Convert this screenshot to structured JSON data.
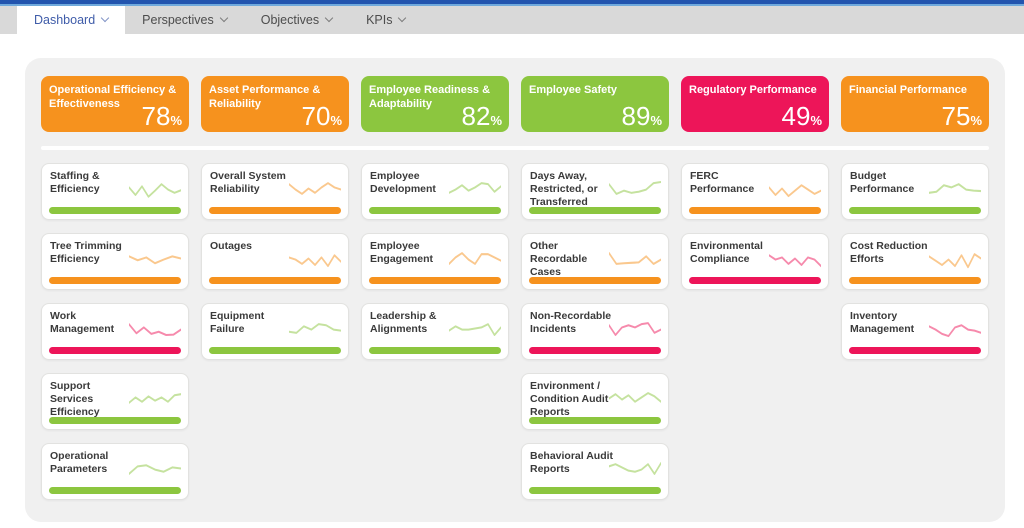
{
  "nav": {
    "tabs": [
      {
        "label": "Dashboard",
        "active": true
      },
      {
        "label": "Perspectives",
        "active": false
      },
      {
        "label": "Objectives",
        "active": false
      },
      {
        "label": "KPIs",
        "active": false
      }
    ]
  },
  "colors": {
    "green": "#8CC63F",
    "orange": "#F6921E",
    "crimson": "#ED1559",
    "accent_dark_blue": "#2254AE",
    "accent_light_blue": "#6FA9DC",
    "active_tab_text": "#3F5CA9"
  },
  "scorecard": {
    "percent_suffix": "%",
    "perspectives": [
      {
        "title": "Operational Efficiency & Effectiveness",
        "score": "78",
        "status": "orange",
        "kpis": [
          {
            "title": "Staffing & Efficiency",
            "status": "green",
            "spark": [
              55,
              20,
              60,
              12,
              40,
              70,
              45,
              30,
              42
            ]
          },
          {
            "title": "Tree Trimming Efficiency",
            "status": "orange",
            "spark": [
              60,
              42,
              55,
              28,
              45,
              60,
              50
            ]
          },
          {
            "title": "Work Management",
            "status": "crimson",
            "spark": [
              70,
              28,
              55,
              25,
              35,
              20,
              22,
              45
            ]
          },
          {
            "title": "Support Services Efficiency",
            "status": "green",
            "spark": [
              30,
              55,
              35,
              60,
              40,
              55,
              35,
              65,
              70
            ]
          },
          {
            "title": "Operational Parameters",
            "status": "green",
            "spark": [
              25,
              60,
              65,
              45,
              35,
              55,
              50
            ]
          }
        ]
      },
      {
        "title": "Overall System Reliability",
        "score": "70",
        "status": "orange",
        "header_title": "Asset Performance & Reliability",
        "kpis": [
          {
            "title": "Overall System Reliability",
            "status": "orange",
            "spark": [
              70,
              45,
              25,
              50,
              30,
              55,
              75,
              55,
              45
            ]
          },
          {
            "title": "Outages",
            "status": "orange",
            "spark": [
              55,
              45,
              25,
              50,
              20,
              55,
              15,
              65,
              35
            ]
          },
          {
            "title": "Equipment Failure",
            "status": "green",
            "spark": [
              35,
              30,
              60,
              45,
              70,
              65,
              45,
              40
            ]
          }
        ]
      },
      {
        "title": "Employee Readiness & Adaptability",
        "score": "82",
        "status": "green",
        "kpis": [
          {
            "title": "Employee Development",
            "status": "green",
            "spark": [
              30,
              45,
              65,
              40,
              55,
              75,
              70,
              35,
              60
            ]
          },
          {
            "title": "Employee Engagement",
            "status": "orange",
            "spark": [
              25,
              55,
              75,
              45,
              25,
              70,
              70,
              55,
              40
            ]
          },
          {
            "title": "Leadership & Alignments",
            "status": "green",
            "spark": [
              40,
              60,
              45,
              45,
              50,
              55,
              70,
              20,
              55
            ]
          }
        ]
      },
      {
        "title": "Employee Safety",
        "score": "89",
        "status": "green",
        "kpis": [
          {
            "title": "Days Away, Restricted, or Transferred",
            "status": "green",
            "spark": [
              70,
              25,
              40,
              30,
              35,
              45,
              75,
              80
            ]
          },
          {
            "title": "Other Recordable Cases",
            "status": "orange",
            "spark": [
              75,
              25,
              28,
              30,
              32,
              60,
              25,
              45
            ]
          },
          {
            "title": "Non-Recordable Incidents",
            "status": "crimson",
            "spark": [
              65,
              20,
              55,
              65,
              55,
              70,
              75,
              30,
              45
            ]
          },
          {
            "title": "Environment / Condition Audit Reports",
            "status": "green",
            "spark": [
              50,
              70,
              45,
              65,
              35,
              55,
              75,
              60,
              35
            ]
          },
          {
            "title": "Behavioral Audit Reports",
            "status": "green",
            "spark": [
              60,
              70,
              55,
              40,
              35,
              45,
              70,
              25,
              75
            ]
          }
        ]
      },
      {
        "title": "Regulatory Performance",
        "score": "49",
        "status": "crimson",
        "kpis": [
          {
            "title": "FERC Performance",
            "status": "orange",
            "spark": [
              55,
              20,
              50,
              15,
              40,
              65,
              45,
              25,
              40
            ]
          },
          {
            "title": "Environmental Compliance",
            "status": "crimson",
            "spark": [
              65,
              45,
              55,
              25,
              50,
              20,
              55,
              45,
              15
            ]
          }
        ]
      },
      {
        "title": "Financial Performance",
        "score": "75",
        "status": "orange",
        "kpis": [
          {
            "title": "Budget Performance",
            "status": "green",
            "spark": [
              30,
              35,
              65,
              55,
              70,
              45,
              40,
              38
            ]
          },
          {
            "title": "Cost Reduction Efforts",
            "status": "orange",
            "spark": [
              60,
              40,
              20,
              45,
              15,
              65,
              10,
              70,
              50
            ]
          },
          {
            "title": "Inventory Management",
            "status": "crimson",
            "spark": [
              60,
              45,
              25,
              15,
              55,
              65,
              45,
              40,
              30
            ]
          }
        ]
      }
    ]
  },
  "header_titles": [
    "Operational Efficiency & Effectiveness",
    "Asset Performance & Reliability",
    "Employee Readiness & Adaptability",
    "Employee Safety",
    "Regulatory Performance",
    "Financial Performance"
  ]
}
